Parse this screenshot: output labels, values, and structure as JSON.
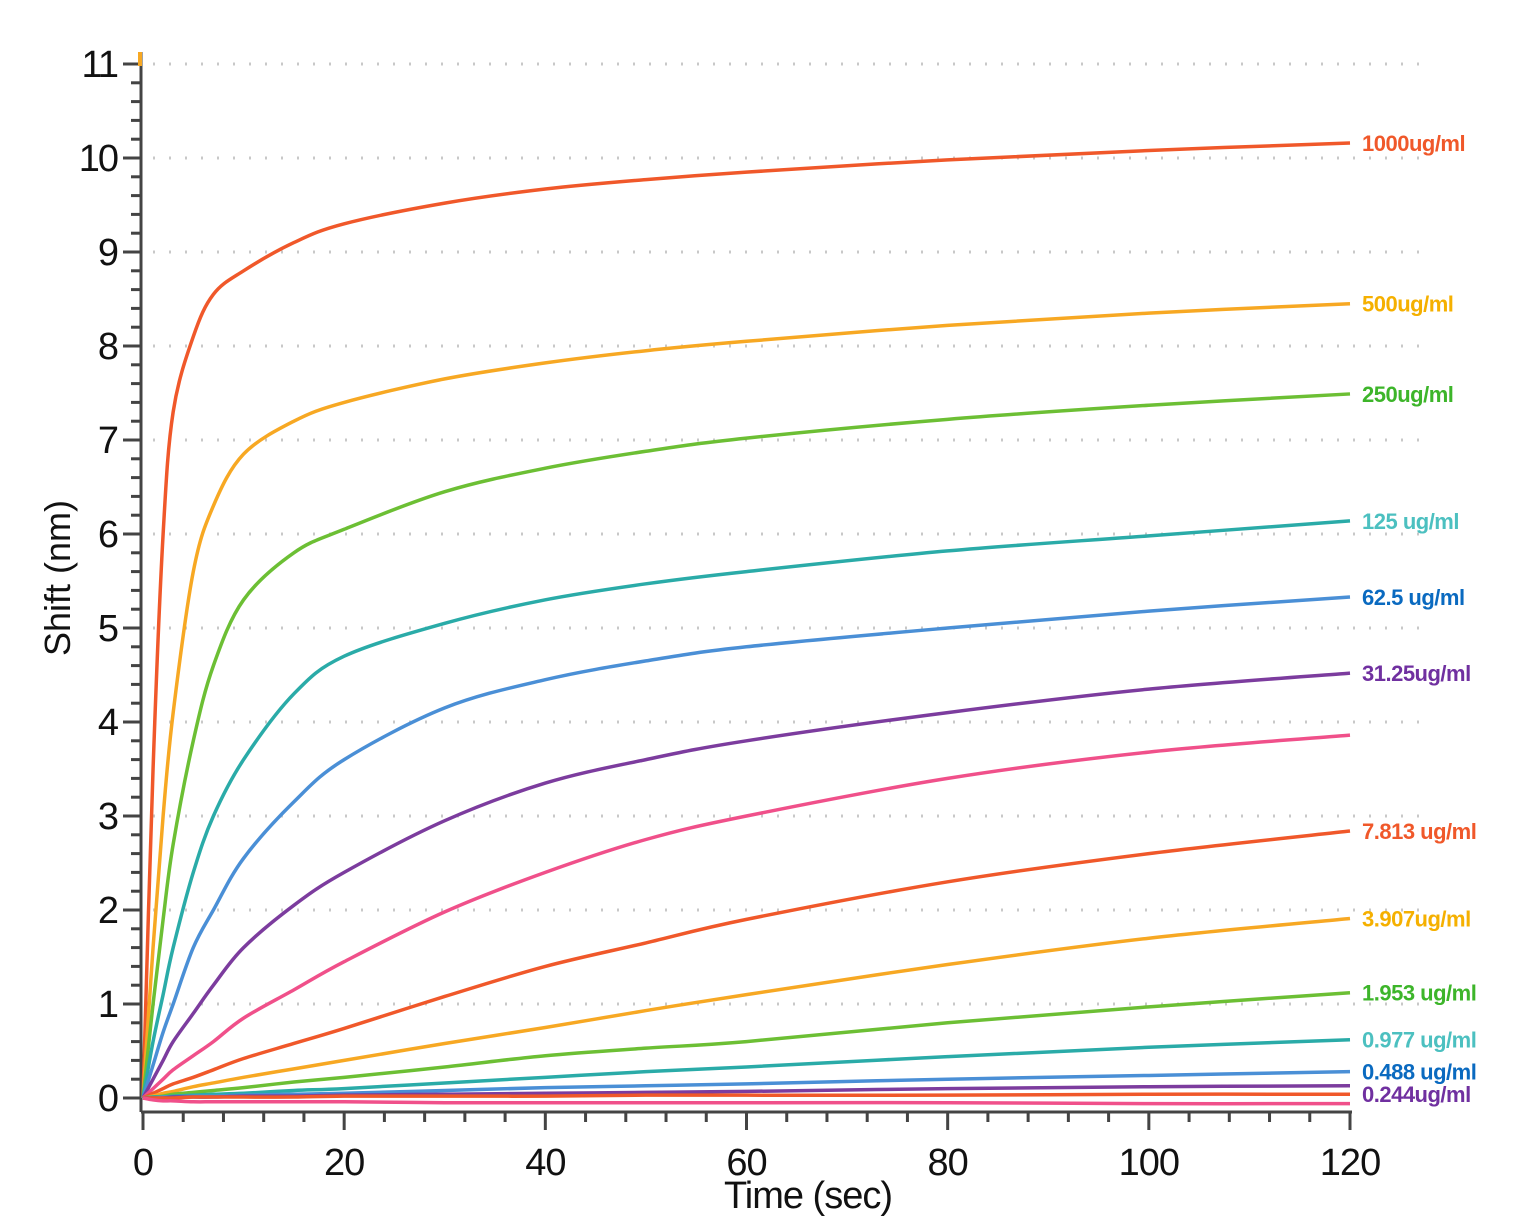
{
  "chart_data": {
    "type": "line",
    "title": "",
    "xlabel": "Time (sec)",
    "ylabel": "Shift (nm)",
    "xlim": [
      0,
      120
    ],
    "ylim": [
      0,
      11
    ],
    "xticks": [
      "0",
      "20",
      "40",
      "60",
      "80",
      "100",
      "120"
    ],
    "yticks": [
      "0",
      "1",
      "2",
      "3",
      "4",
      "5",
      "6",
      "7",
      "8",
      "9",
      "10",
      "11"
    ],
    "grid": "horizontal dotted",
    "x": [
      0,
      1,
      2,
      3,
      5,
      7,
      10,
      15,
      20,
      30,
      40,
      50,
      60,
      80,
      100,
      120
    ],
    "series": [
      {
        "name": "1000ug/ml",
        "color": "#f0582a",
        "label_color": "#f0582a",
        "values": [
          0,
          3.5,
          6.0,
          7.3,
          8.1,
          8.55,
          8.8,
          9.1,
          9.3,
          9.52,
          9.67,
          9.77,
          9.85,
          9.98,
          10.08,
          10.16
        ]
      },
      {
        "name": "500ug/ml",
        "color": "#f7a823",
        "label_color": "#f5b000",
        "values": [
          0,
          1.6,
          3.0,
          4.1,
          5.6,
          6.3,
          6.85,
          7.2,
          7.4,
          7.65,
          7.82,
          7.95,
          8.05,
          8.22,
          8.35,
          8.45
        ]
      },
      {
        "name": "250ug/ml",
        "color": "#6cbf34",
        "label_color": "#3db52a",
        "values": [
          0,
          1.0,
          1.9,
          2.7,
          3.8,
          4.6,
          5.3,
          5.8,
          6.05,
          6.45,
          6.7,
          6.88,
          7.02,
          7.22,
          7.37,
          7.49
        ]
      },
      {
        "name": "125 ug/ml",
        "color": "#2aaba8",
        "label_color": "#4cc0c0",
        "values": [
          0,
          0.6,
          1.1,
          1.6,
          2.4,
          3.0,
          3.6,
          4.3,
          4.7,
          5.05,
          5.3,
          5.47,
          5.6,
          5.82,
          5.98,
          6.14
        ]
      },
      {
        "name": "62.5 ug/ml",
        "color": "#4a8fd6",
        "label_color": "#0a6ac0",
        "values": [
          0,
          0.35,
          0.7,
          1.0,
          1.6,
          2.0,
          2.55,
          3.15,
          3.6,
          4.15,
          4.45,
          4.65,
          4.8,
          5.0,
          5.18,
          5.33
        ]
      },
      {
        "name": "31.25ug/ml",
        "color": "#7c3c9e",
        "label_color": "#7030a0",
        "values": [
          0,
          0.2,
          0.4,
          0.6,
          0.9,
          1.2,
          1.6,
          2.05,
          2.4,
          2.95,
          3.35,
          3.6,
          3.8,
          4.1,
          4.35,
          4.52
        ]
      },
      {
        "name": "",
        "color": "#f0508a",
        "label_color": "#f0508a",
        "values": [
          0,
          0.1,
          0.2,
          0.3,
          0.45,
          0.6,
          0.85,
          1.15,
          1.45,
          1.98,
          2.4,
          2.75,
          3.0,
          3.4,
          3.68,
          3.86
        ]
      },
      {
        "name": "7.813 ug/ml",
        "color": "#f0582a",
        "label_color": "#f0582a",
        "values": [
          0,
          0.05,
          0.1,
          0.15,
          0.22,
          0.3,
          0.42,
          0.58,
          0.74,
          1.08,
          1.4,
          1.65,
          1.9,
          2.3,
          2.6,
          2.84
        ]
      },
      {
        "name": "3.907ug/ml",
        "color": "#f7a823",
        "label_color": "#f5b000",
        "values": [
          0,
          0.02,
          0.05,
          0.07,
          0.12,
          0.16,
          0.22,
          0.31,
          0.4,
          0.58,
          0.75,
          0.93,
          1.1,
          1.42,
          1.7,
          1.91
        ]
      },
      {
        "name": "1.953 ug/ml",
        "color": "#6cbf34",
        "label_color": "#3db52a",
        "values": [
          0,
          0.01,
          0.02,
          0.04,
          0.06,
          0.08,
          0.11,
          0.17,
          0.22,
          0.33,
          0.45,
          0.53,
          0.6,
          0.8,
          0.97,
          1.12
        ]
      },
      {
        "name": "0.977 ug/ml",
        "color": "#2aaba8",
        "label_color": "#4cc0c0",
        "values": [
          0,
          0.01,
          0.01,
          0.02,
          0.03,
          0.04,
          0.05,
          0.08,
          0.1,
          0.16,
          0.22,
          0.28,
          0.33,
          0.44,
          0.54,
          0.62
        ]
      },
      {
        "name": "0.488 ug/ml",
        "color": "#4a8fd6",
        "label_color": "#0a6ac0",
        "values": [
          0,
          0,
          0.01,
          0.01,
          0.02,
          0.02,
          0.03,
          0.04,
          0.05,
          0.08,
          0.11,
          0.13,
          0.15,
          0.2,
          0.24,
          0.28
        ]
      },
      {
        "name": "0.244ug/ml",
        "color": "#7c3c9e",
        "label_color": "#7030a0",
        "values": [
          0,
          0,
          0,
          0.01,
          0.01,
          0.01,
          0.02,
          0.02,
          0.03,
          0.04,
          0.05,
          0.06,
          0.07,
          0.1,
          0.12,
          0.13
        ]
      },
      {
        "name": "",
        "color": "#f0582a",
        "label_color": "#f0582a",
        "values": [
          0,
          0,
          0,
          0,
          0.01,
          0.01,
          0.01,
          0.01,
          0.02,
          0.02,
          0.02,
          0.03,
          0.03,
          0.03,
          0.04,
          0.04
        ]
      },
      {
        "name": "",
        "color": "#f0508a",
        "label_color": "#f0508a",
        "values": [
          0,
          -0.02,
          -0.03,
          -0.03,
          -0.04,
          -0.04,
          -0.04,
          -0.04,
          -0.04,
          -0.05,
          -0.05,
          -0.05,
          -0.05,
          -0.05,
          -0.06,
          -0.06
        ]
      }
    ]
  }
}
